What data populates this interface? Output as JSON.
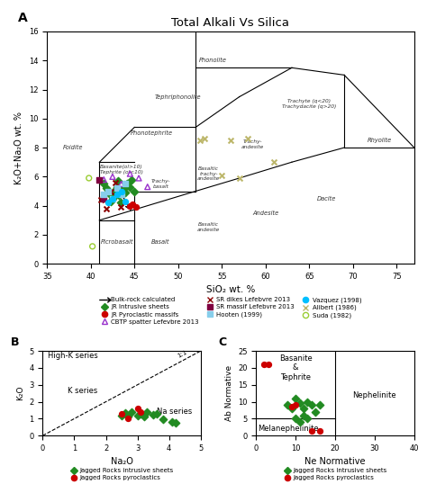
{
  "chart_data": [
    {
      "type": "scatter",
      "panel_label": "A",
      "title": "Total Alkali Vs Silica",
      "xlabel": "SiO₂ wt. %",
      "ylabel": "K₂O+Na₂O wt. %",
      "xlim": [
        35,
        77
      ],
      "ylim": [
        0,
        16
      ],
      "xticks": [
        35,
        40,
        45,
        50,
        55,
        60,
        65,
        70,
        75
      ],
      "yticks": [
        0,
        2,
        4,
        6,
        8,
        10,
        12,
        14,
        16
      ],
      "legend": "below",
      "lines": [
        {
          "x": [
            41,
            45
          ],
          "y": [
            3,
            3
          ],
          "color": "black",
          "line_style": "solid"
        },
        {
          "x": [
            41,
            41
          ],
          "y": [
            0,
            7
          ],
          "color": "black",
          "line_style": "solid"
        },
        {
          "x": [
            45,
            45
          ],
          "y": [
            0,
            5
          ],
          "color": "black",
          "line_style": "solid"
        },
        {
          "x": [
            41,
            45
          ],
          "y": [
            7,
            7
          ],
          "color": "black",
          "line_style": "solid"
        },
        {
          "x": [
            41,
            52
          ],
          "y": [
            3,
            5
          ],
          "color": "black",
          "line_style": "solid"
        },
        {
          "x": [
            45,
            52
          ],
          "y": [
            5,
            5
          ],
          "color": "black",
          "line_style": "solid"
        },
        {
          "x": [
            41,
            45
          ],
          "y": [
            7,
            9.4
          ],
          "color": "black",
          "line_style": "solid"
        },
        {
          "x": [
            45,
            52
          ],
          "y": [
            9.4,
            9.4
          ],
          "color": "black",
          "line_style": "solid"
        },
        {
          "x": [
            52,
            52
          ],
          "y": [
            5,
            16
          ],
          "color": "black",
          "line_style": "solid"
        },
        {
          "x": [
            52,
            57
          ],
          "y": [
            9.4,
            11.5
          ],
          "color": "black",
          "line_style": "solid"
        },
        {
          "x": [
            57,
            63
          ],
          "y": [
            11.5,
            13.5
          ],
          "color": "black",
          "line_style": "solid"
        },
        {
          "x": [
            52,
            63
          ],
          "y": [
            13.5,
            13.5
          ],
          "color": "black",
          "line_style": "solid"
        },
        {
          "x": [
            52,
            57
          ],
          "y": [
            5,
            5.9
          ],
          "color": "black",
          "line_style": "solid"
        },
        {
          "x": [
            57,
            63
          ],
          "y": [
            5.9,
            7
          ],
          "color": "black",
          "line_style": "solid"
        },
        {
          "x": [
            63,
            69
          ],
          "y": [
            7,
            8
          ],
          "color": "black",
          "line_style": "solid"
        },
        {
          "x": [
            69,
            69
          ],
          "y": [
            8,
            13
          ],
          "color": "black",
          "line_style": "solid"
        },
        {
          "x": [
            63,
            69
          ],
          "y": [
            13.5,
            13
          ],
          "color": "black",
          "line_style": "solid"
        },
        {
          "x": [
            69,
            77
          ],
          "y": [
            13,
            8
          ],
          "color": "black",
          "line_style": "solid"
        },
        {
          "x": [
            69,
            77
          ],
          "y": [
            8,
            8
          ],
          "color": "black",
          "line_style": "solid"
        }
      ],
      "arrows": [
        {
          "name": "Bulk-rock calculated",
          "x1": 43.5,
          "y1": 4.8,
          "x2": 44.8,
          "y2": 3.5,
          "color": "black"
        }
      ],
      "annotations": [
        {
          "text": "Foidite",
          "x": 38,
          "y": 8
        },
        {
          "text": "Picrobasalt",
          "x": 43,
          "y": 1.5
        },
        {
          "text": "Basalt",
          "x": 48,
          "y": 1.5
        },
        {
          "text": "Basaltic\nandesite",
          "x": 53.5,
          "y": 2.5
        },
        {
          "text": "Andesite",
          "x": 60,
          "y": 3.5
        },
        {
          "text": "Dacite",
          "x": 67,
          "y": 4.5
        },
        {
          "text": "Rhyolite",
          "x": 73,
          "y": 8.5
        },
        {
          "text": "Phonolite",
          "x": 54,
          "y": 14.0
        },
        {
          "text": "Tephriphonolite",
          "x": 50,
          "y": 11.5
        },
        {
          "text": "Phonotephrite",
          "x": 47,
          "y": 9.0
        },
        {
          "text": "Basanite(ol>10)\nTephrite (ol<10)",
          "x": 43.5,
          "y": 6.5
        },
        {
          "text": "Trachy-\nbasalt",
          "x": 48,
          "y": 5.5
        },
        {
          "text": "Basaltic\ntrachy-\nandesite",
          "x": 53.5,
          "y": 6.2
        },
        {
          "text": "Trachy-\nandesite",
          "x": 58.5,
          "y": 8.2
        },
        {
          "text": "Trachyte (q<20)\nTrachydacite (q>20)",
          "x": 65,
          "y": 11.0
        }
      ],
      "series": [
        {
          "name": "JR Intrusive sheets",
          "color": "#228B22",
          "marker": "diamond",
          "x": [
            41.5,
            41.8,
            42.0,
            42.2,
            42.5,
            42.7,
            42.8,
            43.0,
            43.2,
            43.5,
            43.8,
            44.0,
            44.2,
            44.5,
            44.7,
            45.0,
            42.3,
            42.6,
            43.1,
            43.4
          ],
          "y": [
            5.5,
            5.2,
            5.0,
            4.8,
            4.5,
            4.8,
            5.1,
            5.3,
            4.7,
            5.0,
            5.2,
            4.9,
            5.5,
            5.3,
            5.8,
            5.0,
            4.3,
            4.6,
            5.7,
            4.2
          ]
        },
        {
          "name": "JR Pyroclastic massifs",
          "color": "#CC0000",
          "marker": "circle",
          "x": [
            44.5,
            44.8,
            45.2
          ],
          "y": [
            4.0,
            4.1,
            3.9
          ]
        },
        {
          "name": "CBTP spatter Lefevbre 2013",
          "color": "#9932CC",
          "marker": "triangle_open",
          "x": [
            41.5,
            42.5,
            43.5,
            44.5,
            45.5,
            46.5
          ],
          "y": [
            5.8,
            6.0,
            5.5,
            6.2,
            5.9,
            5.3
          ]
        },
        {
          "name": "SR dikes Lefebvre 2013",
          "color": "#8B0000",
          "marker": "x",
          "x": [
            41.2,
            41.8,
            42.3,
            42.8,
            43.4
          ],
          "y": [
            4.4,
            3.8,
            5.0,
            5.6,
            3.9
          ]
        },
        {
          "name": "SR massif Lefebvre 2013",
          "color": "#800040",
          "marker": "square",
          "x": [
            41.0,
            41.5
          ],
          "y": [
            5.8,
            4.5
          ]
        },
        {
          "name": "Hooten (1999)",
          "color": "#87CEEB",
          "marker": "square",
          "x": [
            41.5,
            42.0,
            42.5,
            43.0,
            43.5,
            44.0
          ],
          "y": [
            4.8,
            5.0,
            4.5,
            5.2,
            4.8,
            5.5
          ]
        },
        {
          "name": "Vazquez (1998)",
          "color": "#00BFFF",
          "marker": "circle",
          "x": [
            42.0,
            42.5,
            43.0,
            43.5,
            44.0
          ],
          "y": [
            4.2,
            4.5,
            4.8,
            5.0,
            4.3
          ]
        },
        {
          "name": "Alibert (1986)",
          "color": "#BDB76B",
          "marker": "x",
          "x": [
            53.0,
            56.0,
            58.0,
            55.0,
            52.5,
            57.0,
            61.0
          ],
          "y": [
            8.6,
            8.5,
            8.6,
            6.1,
            8.5,
            5.9,
            7.0
          ]
        },
        {
          "name": "Suda (1982)",
          "color": "#9ACD32",
          "marker": "circle_open",
          "x": [
            40.2,
            39.8
          ],
          "y": [
            1.2,
            5.9
          ]
        }
      ]
    },
    {
      "type": "scatter",
      "panel_label": "B",
      "xlabel": "Na₂O",
      "ylabel": "K₂O",
      "xlim": [
        0,
        5
      ],
      "ylim": [
        0,
        5
      ],
      "xticks": [
        0,
        1,
        2,
        3,
        4,
        5
      ],
      "yticks": [
        0,
        1,
        2,
        3,
        4,
        5
      ],
      "legend": "below",
      "lines": [
        {
          "x": [
            0,
            5
          ],
          "y": [
            0,
            5
          ],
          "color": "black",
          "line_style": "dashed",
          "label": "1:1",
          "label_x": 4.3,
          "label_y": 4.55
        }
      ],
      "annotations": [
        {
          "text": "High-K series",
          "x": 0.15,
          "y": 4.6
        },
        {
          "text": "K series",
          "x": 0.8,
          "y": 2.5
        },
        {
          "text": "Na series",
          "x": 3.6,
          "y": 1.3
        }
      ],
      "series": [
        {
          "name": "Jagged Rocks intrusive sheets",
          "color": "#228B22",
          "marker": "diamond",
          "x": [
            2.5,
            2.6,
            2.7,
            2.8,
            3.0,
            3.1,
            3.2,
            3.3,
            3.5,
            3.6,
            3.8,
            4.1,
            4.2
          ],
          "y": [
            1.2,
            1.35,
            1.1,
            1.4,
            1.2,
            1.3,
            1.1,
            1.4,
            1.25,
            1.3,
            0.95,
            0.8,
            0.75
          ]
        },
        {
          "name": "Jagged Rocks pyroclastics",
          "color": "#CC0000",
          "marker": "circle",
          "x": [
            2.5,
            2.7,
            3.0,
            3.1
          ],
          "y": [
            1.3,
            1.0,
            1.6,
            1.4
          ]
        }
      ]
    },
    {
      "type": "scatter",
      "panel_label": "C",
      "xlabel": "Ne Normative",
      "ylabel": "Ab Normative",
      "xlim": [
        0,
        40
      ],
      "ylim": [
        0,
        25
      ],
      "xticks": [
        0,
        10,
        20,
        30,
        40
      ],
      "yticks": [
        0,
        5,
        10,
        15,
        20,
        25
      ],
      "legend": "below",
      "lines": [
        {
          "x": [
            20,
            20
          ],
          "y": [
            0,
            25
          ],
          "color": "black",
          "line_style": "solid"
        },
        {
          "x": [
            0,
            20
          ],
          "y": [
            5,
            5
          ],
          "color": "black",
          "line_style": "solid"
        }
      ],
      "annotations": [
        {
          "text": "Basanite\n&\nTephrite",
          "x": 10,
          "y": 20
        },
        {
          "text": "Nephelinite",
          "x": 30,
          "y": 12
        },
        {
          "text": "Melanephelinite",
          "x": 8,
          "y": 2
        }
      ],
      "series": [
        {
          "name": "Jagged Rocks intrusive sheets",
          "color": "#228B22",
          "marker": "diamond",
          "x": [
            8,
            9,
            10,
            11,
            12,
            13,
            14,
            15,
            16,
            10,
            11,
            12,
            13
          ],
          "y": [
            9,
            8,
            11,
            9.5,
            8,
            10,
            9,
            7,
            9,
            5,
            4,
            6,
            5
          ]
        },
        {
          "name": "Jagged Rocks pyroclastics",
          "color": "#CC0000",
          "marker": "circle",
          "x": [
            2,
            3,
            9,
            10,
            14,
            16
          ],
          "y": [
            21,
            21,
            8.5,
            9,
            1.5,
            1.5
          ]
        }
      ]
    }
  ]
}
